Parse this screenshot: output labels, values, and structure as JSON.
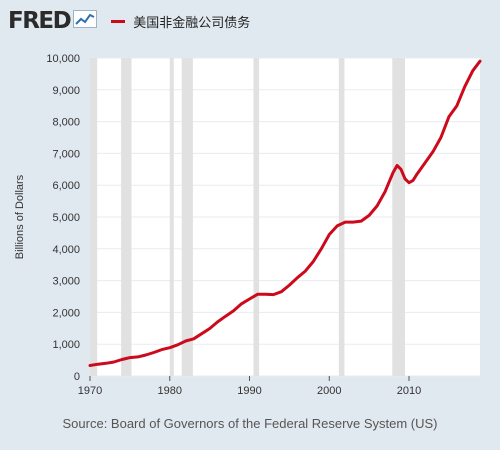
{
  "header": {
    "logo_text": "FRED",
    "logo_icon": "line-chart-icon"
  },
  "source_text": "Source: Board of Governors of the Federal Reserve System (US)",
  "colors": {
    "background": "#e1e9f0",
    "plot_background": "#ffffff",
    "series": "#cc0a1b",
    "recession": "#e1e1e1",
    "grid": "#e7ebf0"
  },
  "chart_data": {
    "type": "line",
    "title": "",
    "xlabel": "",
    "ylabel": "Billions of Dollars",
    "xlim": [
      1970.0,
      2018.9
    ],
    "ylim": [
      0,
      10000
    ],
    "x_ticks": [
      1970,
      1980,
      1990,
      2000,
      2010
    ],
    "y_ticks": [
      0,
      1000,
      2000,
      3000,
      4000,
      5000,
      6000,
      7000,
      8000,
      9000,
      10000
    ],
    "y_tick_labels": [
      "0",
      "1,000",
      "2,000",
      "3,000",
      "4,000",
      "5,000",
      "6,000",
      "7,000",
      "8,000",
      "9,000",
      "10,000"
    ],
    "grid": true,
    "recessions": [
      [
        1969.9,
        1970.9
      ],
      [
        1973.9,
        1975.2
      ],
      [
        1980.0,
        1980.5
      ],
      [
        1981.5,
        1982.9
      ],
      [
        1990.5,
        1991.2
      ],
      [
        2001.2,
        2001.9
      ],
      [
        2007.9,
        2009.5
      ]
    ],
    "series": [
      {
        "name": "美国非金融公司债务",
        "x": [
          1970,
          1971,
          1972,
          1973,
          1974,
          1975,
          1976,
          1977,
          1978,
          1979,
          1980,
          1981,
          1982,
          1983,
          1984,
          1985,
          1986,
          1987,
          1988,
          1989,
          1990,
          1991,
          1992,
          1993,
          1994,
          1995,
          1996,
          1997,
          1998,
          1999,
          2000,
          2001,
          2002,
          2003,
          2004,
          2005,
          2006,
          2007,
          2008,
          2008.5,
          2009,
          2009.5,
          2010,
          2010.5,
          2011,
          2012,
          2013,
          2014,
          2015,
          2016,
          2017,
          2018,
          2018.9
        ],
        "values": [
          330,
          370,
          400,
          440,
          520,
          580,
          600,
          660,
          740,
          830,
          890,
          980,
          1100,
          1170,
          1330,
          1490,
          1700,
          1880,
          2050,
          2270,
          2420,
          2570,
          2570,
          2560,
          2650,
          2860,
          3090,
          3300,
          3600,
          4000,
          4450,
          4720,
          4840,
          4840,
          4870,
          5050,
          5350,
          5800,
          6400,
          6620,
          6500,
          6200,
          6080,
          6150,
          6350,
          6700,
          7050,
          7500,
          8150,
          8500,
          9100,
          9600,
          9900
        ]
      }
    ]
  }
}
